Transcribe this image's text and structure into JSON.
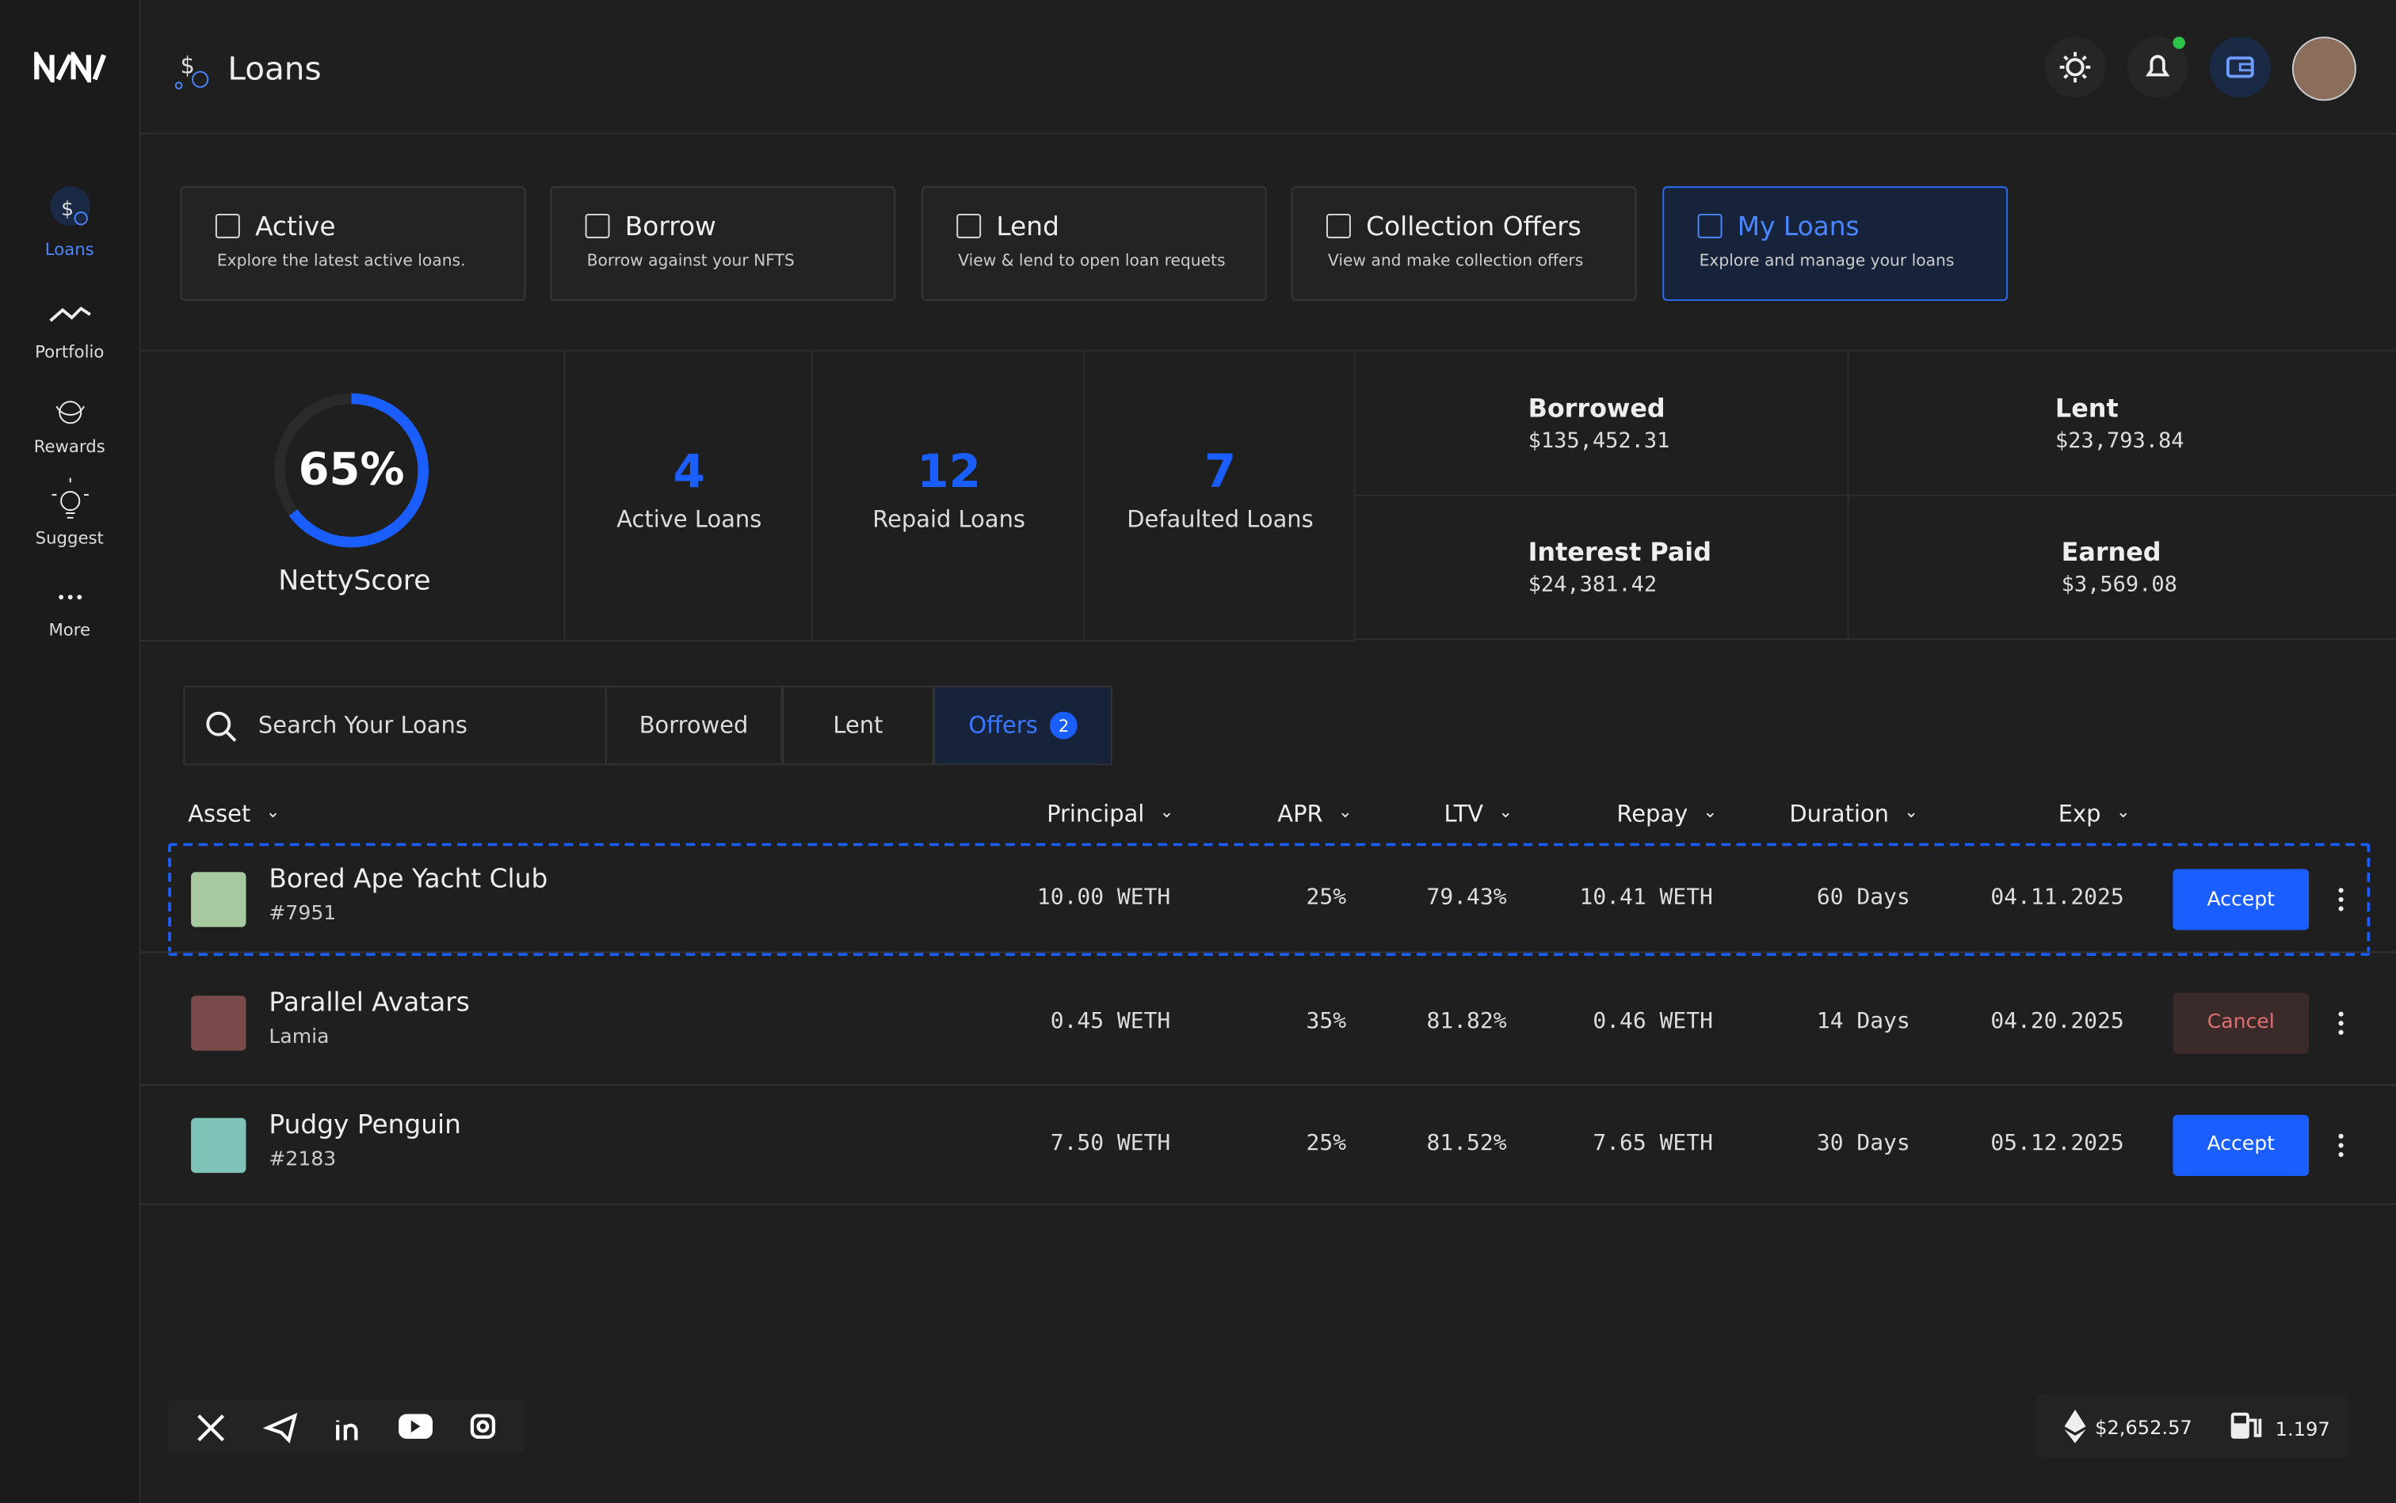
{
  "header": {
    "title": "Loans"
  },
  "sidebar": [
    "Loans",
    "Portfolio",
    "Rewards",
    "Suggest",
    "More"
  ],
  "tabs": [
    {
      "title": "Active",
      "subtitle": "Explore the latest active loans."
    },
    {
      "title": "Borrow",
      "subtitle": "Borrow against your NFTS"
    },
    {
      "title": "Lend",
      "subtitle": "View & lend to open loan requets"
    },
    {
      "title": "Collection Offers",
      "subtitle": "View and make collection offers"
    },
    {
      "title": "My Loans",
      "subtitle": "Explore and manage your loans"
    }
  ],
  "score": {
    "value": 65,
    "label": "65%",
    "caption": "NettyScore"
  },
  "stats": [
    {
      "value": 4,
      "label": "Active Loans"
    },
    {
      "value": 12,
      "label": "Repaid Loans"
    },
    {
      "value": 7,
      "label": "Defaulted Loans"
    }
  ],
  "summary": [
    {
      "label": "Borrowed",
      "value": "$135,452.31"
    },
    {
      "label": "Lent",
      "value": "$23,793.84"
    },
    {
      "label": "Interest Paid",
      "value": "$24,381.42"
    },
    {
      "label": "Earned",
      "value": "$3,569.08"
    }
  ],
  "search": {
    "placeholder": "Search Your Loans"
  },
  "filters": [
    "Borrowed",
    "Lent",
    "Offers"
  ],
  "offers_count": 2,
  "columns": [
    "Asset",
    "Principal",
    "APR",
    "LTV",
    "Repay",
    "Duration",
    "Exp"
  ],
  "rows": [
    {
      "name": "Bored Ape Yacht Club",
      "sub": "#7951",
      "principal": "10.00 WETH",
      "apr": "25%",
      "ltv": "79.43%",
      "repay": "10.41 WETH",
      "duration": "60 Days",
      "exp": "04.11.2025",
      "action": "Accept"
    },
    {
      "name": "Parallel Avatars",
      "sub": "Lamia",
      "principal": "0.45 WETH",
      "apr": "35%",
      "ltv": "81.82%",
      "repay": "0.46 WETH",
      "duration": "14 Days",
      "exp": "04.20.2025",
      "action": "Cancel"
    },
    {
      "name": "Pudgy Penguin",
      "sub": "#2183",
      "principal": "7.50 WETH",
      "apr": "25%",
      "ltv": "81.52%",
      "repay": "7.65 WETH",
      "duration": "30 Days",
      "exp": "05.12.2025",
      "action": "Accept"
    }
  ],
  "footer": {
    "eth_price": "$2,652.57",
    "gas": "1.197"
  }
}
